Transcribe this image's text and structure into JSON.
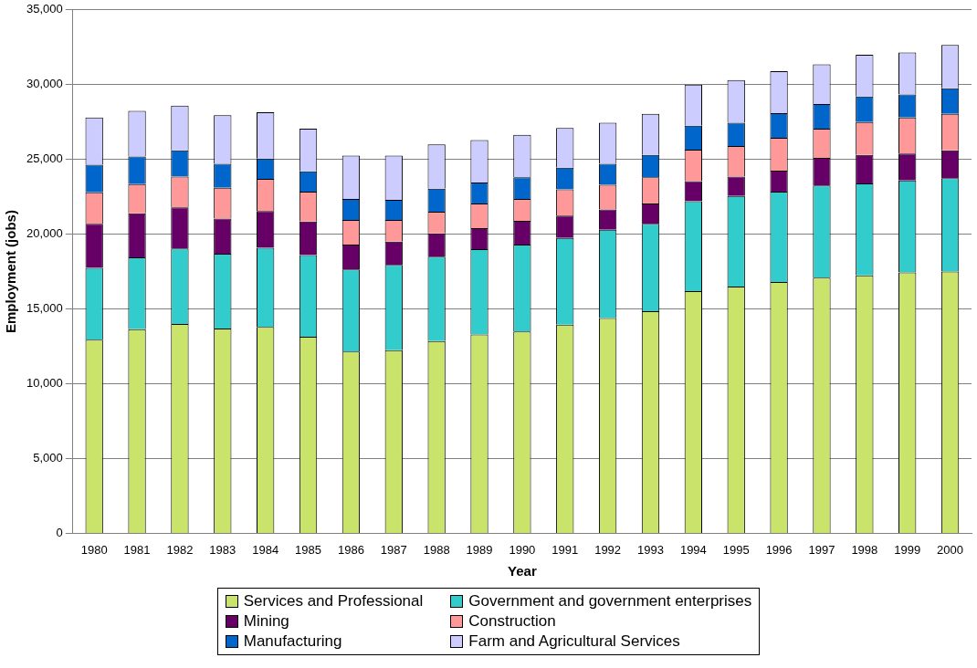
{
  "chart_data": {
    "type": "bar",
    "stacked": true,
    "xlabel": "Year",
    "ylabel": "Employment (jobs)",
    "categories": [
      "1980",
      "1981",
      "1982",
      "1983",
      "1984",
      "1985",
      "1986",
      "1987",
      "1988",
      "1989",
      "1990",
      "1991",
      "1992",
      "1993",
      "1994",
      "1995",
      "1996",
      "1997",
      "1998",
      "1999",
      "2000"
    ],
    "series": [
      {
        "name": "Services and Professional",
        "color": "#c9e36b",
        "values": [
          12950,
          13650,
          14000,
          13700,
          13800,
          13150,
          12150,
          12250,
          12850,
          13300,
          13500,
          13950,
          14400,
          14850,
          16200,
          16500,
          16800,
          17100,
          17250,
          17450,
          17500
        ]
      },
      {
        "name": "Government and government enterprises",
        "color": "#33cccc",
        "values": [
          4800,
          4800,
          5050,
          5000,
          5300,
          5450,
          5500,
          5700,
          5650,
          5700,
          5800,
          5800,
          5900,
          5850,
          6000,
          6050,
          6050,
          6150,
          6150,
          6150,
          6250
        ]
      },
      {
        "name": "Mining",
        "color": "#660066",
        "values": [
          2950,
          2950,
          2750,
          2350,
          2450,
          2250,
          1650,
          1550,
          1550,
          1400,
          1600,
          1500,
          1350,
          1350,
          1350,
          1300,
          1400,
          1850,
          1900,
          1800,
          1850
        ]
      },
      {
        "name": "Construction",
        "color": "#ff9999",
        "values": [
          2100,
          1950,
          2050,
          2050,
          2150,
          2000,
          1650,
          1450,
          1450,
          1650,
          1450,
          1750,
          1650,
          1750,
          2100,
          2050,
          2200,
          1950,
          2200,
          2400,
          2450
        ]
      },
      {
        "name": "Manufacturing",
        "color": "#0066cc",
        "values": [
          1850,
          1850,
          1750,
          1600,
          1350,
          1350,
          1400,
          1350,
          1550,
          1400,
          1450,
          1450,
          1400,
          1500,
          1600,
          1550,
          1650,
          1650,
          1700,
          1550,
          1700
        ]
      },
      {
        "name": "Farm and Agricultural Services",
        "color": "#ccccff",
        "values": [
          3150,
          3050,
          3000,
          3250,
          3100,
          2850,
          2900,
          2950,
          2950,
          2850,
          2850,
          2650,
          2750,
          2750,
          2750,
          2850,
          2800,
          2650,
          2800,
          2800,
          2900
        ]
      }
    ],
    "ylim": [
      0,
      35000
    ],
    "yticks": [
      0,
      {
        "value": 5000,
        "label": "5,000"
      },
      {
        "value": 10000,
        "label": "10,000"
      },
      {
        "value": 15000,
        "label": "15,000"
      },
      {
        "value": 20000,
        "label": "20,000"
      },
      {
        "value": 25000,
        "label": "25,000"
      },
      {
        "value": 30000,
        "label": "30,000"
      },
      {
        "value": 35000,
        "label": "35,000"
      }
    ],
    "grid": "y",
    "legend": "bottom"
  }
}
